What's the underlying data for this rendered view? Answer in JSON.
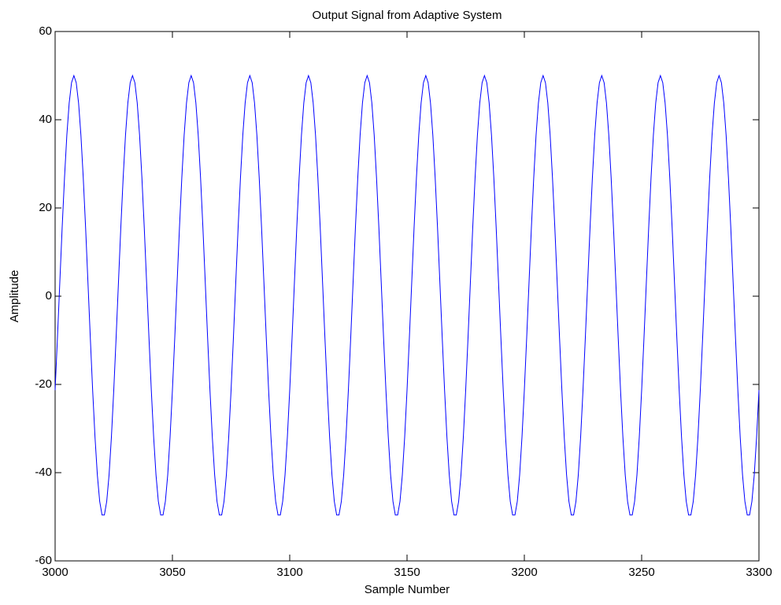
{
  "chart_data": {
    "type": "line",
    "title": "Output Signal from Adaptive System",
    "xlabel": "Sample Number",
    "ylabel": "Amplitude",
    "xlim": [
      3000,
      3300
    ],
    "xticks": [
      3000,
      3050,
      3100,
      3150,
      3200,
      3250,
      3300
    ],
    "ylim": [
      -60,
      60
    ],
    "yticks": [
      -60,
      -40,
      -20,
      0,
      20,
      40,
      60
    ],
    "grid": false,
    "x": [
      3000,
      3001,
      3002,
      3003,
      3004,
      3005,
      3006,
      3007,
      3008,
      3009,
      3010,
      3011,
      3012,
      3013,
      3014,
      3015,
      3016,
      3017,
      3018,
      3019,
      3020,
      3021,
      3022,
      3023,
      3024,
      3025,
      3026,
      3027,
      3028,
      3029,
      3030,
      3031,
      3032,
      3033,
      3034,
      3035,
      3036,
      3037,
      3038,
      3039,
      3040,
      3041,
      3042,
      3043,
      3044,
      3045,
      3046,
      3047,
      3048,
      3049,
      3050,
      3051,
      3052,
      3053,
      3054,
      3055,
      3056,
      3057,
      3058,
      3059,
      3060,
      3061,
      3062,
      3063,
      3064,
      3065,
      3066,
      3067,
      3068,
      3069,
      3070,
      3071,
      3072,
      3073,
      3074,
      3075,
      3076,
      3077,
      3078,
      3079,
      3080,
      3081,
      3082,
      3083,
      3084,
      3085,
      3086,
      3087,
      3088,
      3089,
      3090,
      3091,
      3092,
      3093,
      3094,
      3095,
      3096,
      3097,
      3098,
      3099,
      3100,
      3101,
      3102,
      3103,
      3104,
      3105,
      3106,
      3107,
      3108,
      3109,
      3110,
      3111,
      3112,
      3113,
      3114,
      3115,
      3116,
      3117,
      3118,
      3119,
      3120,
      3121,
      3122,
      3123,
      3124,
      3125,
      3126,
      3127,
      3128,
      3129,
      3130,
      3131,
      3132,
      3133,
      3134,
      3135,
      3136,
      3137,
      3138,
      3139,
      3140,
      3141,
      3142,
      3143,
      3144,
      3145,
      3146,
      3147,
      3148,
      3149,
      3150,
      3151,
      3152,
      3153,
      3154,
      3155,
      3156,
      3157,
      3158,
      3159,
      3160,
      3161,
      3162,
      3163,
      3164,
      3165,
      3166,
      3167,
      3168,
      3169,
      3170,
      3171,
      3172,
      3173,
      3174,
      3175,
      3176,
      3177,
      3178,
      3179,
      3180,
      3181,
      3182,
      3183,
      3184,
      3185,
      3186,
      3187,
      3188,
      3189,
      3190,
      3191,
      3192,
      3193,
      3194,
      3195,
      3196,
      3197,
      3198,
      3199,
      3200,
      3201,
      3202,
      3203,
      3204,
      3205,
      3206,
      3207,
      3208,
      3209,
      3210,
      3211,
      3212,
      3213,
      3214,
      3215,
      3216,
      3217,
      3218,
      3219,
      3220,
      3221,
      3222,
      3223,
      3224,
      3225,
      3226,
      3227,
      3228,
      3229,
      3230,
      3231,
      3232,
      3233,
      3234,
      3235,
      3236,
      3237,
      3238,
      3239,
      3240,
      3241,
      3242,
      3243,
      3244,
      3245,
      3246,
      3247,
      3248,
      3249,
      3250,
      3251,
      3252,
      3253,
      3254,
      3255,
      3256,
      3257,
      3258,
      3259,
      3260,
      3261,
      3262,
      3263,
      3264,
      3265,
      3266,
      3267,
      3268,
      3269,
      3270,
      3271,
      3272,
      3273,
      3274,
      3275,
      3276,
      3277,
      3278,
      3279,
      3280,
      3281,
      3282,
      3283,
      3284,
      3285,
      3286,
      3287,
      3288,
      3289,
      3290,
      3291,
      3292,
      3293,
      3294,
      3295,
      3296,
      3297,
      3298,
      3299,
      3300
    ],
    "series": [
      {
        "color": "#0000ff",
        "values": [
          -21.3,
          -9.4,
          3.1,
          15.5,
          26.8,
          36.5,
          43.8,
          48.4,
          50,
          48.4,
          43.8,
          36.5,
          26.8,
          15.5,
          3.1,
          -9.4,
          -21.3,
          -31.9,
          -40.5,
          -46.5,
          -49.6,
          -49.6,
          -46.5,
          -40.5,
          -31.9,
          -21.3,
          -9.4,
          3.1,
          15.5,
          26.8,
          36.5,
          43.8,
          48.4,
          50,
          48.4,
          43.8,
          36.5,
          26.8,
          15.5,
          3.1,
          -9.4,
          -21.3,
          -31.9,
          -40.5,
          -46.5,
          -49.6,
          -49.6,
          -46.5,
          -40.5,
          -31.9,
          -21.3,
          -9.4,
          3.1,
          15.5,
          26.8,
          36.5,
          43.8,
          48.4,
          50,
          48.4,
          43.8,
          36.5,
          26.8,
          15.5,
          3.1,
          -9.4,
          -21.3,
          -31.9,
          -40.5,
          -46.5,
          -49.6,
          -49.6,
          -46.5,
          -40.5,
          -31.9,
          -21.3,
          -9.4,
          3.1,
          15.5,
          26.8,
          36.5,
          43.8,
          48.4,
          50,
          48.4,
          43.8,
          36.5,
          26.8,
          15.5,
          3.1,
          -9.4,
          -21.3,
          -31.9,
          -40.5,
          -46.5,
          -49.6,
          -49.6,
          -46.5,
          -40.5,
          -31.9,
          -21.3,
          -9.4,
          3.1,
          15.5,
          26.8,
          36.5,
          43.8,
          48.4,
          50,
          48.4,
          43.8,
          36.5,
          26.8,
          15.5,
          3.1,
          -9.4,
          -21.3,
          -31.9,
          -40.5,
          -46.5,
          -49.6,
          -49.6,
          -46.5,
          -40.5,
          -31.9,
          -21.3,
          -9.4,
          3.1,
          15.5,
          26.8,
          36.5,
          43.8,
          48.4,
          50,
          48.4,
          43.8,
          36.5,
          26.8,
          15.5,
          3.1,
          -9.4,
          -21.3,
          -31.9,
          -40.5,
          -46.5,
          -49.6,
          -49.6,
          -46.5,
          -40.5,
          -31.9,
          -21.3,
          -9.4,
          3.1,
          15.5,
          26.8,
          36.5,
          43.8,
          48.4,
          50,
          48.4,
          43.8,
          36.5,
          26.8,
          15.5,
          3.1,
          -9.4,
          -21.3,
          -31.9,
          -40.5,
          -46.5,
          -49.6,
          -49.6,
          -46.5,
          -40.5,
          -31.9,
          -21.3,
          -9.4,
          3.1,
          15.5,
          26.8,
          36.5,
          43.8,
          48.4,
          50,
          48.4,
          43.8,
          36.5,
          26.8,
          15.5,
          3.1,
          -9.4,
          -21.3,
          -31.9,
          -40.5,
          -46.5,
          -49.6,
          -49.6,
          -46.5,
          -40.5,
          -31.9,
          -21.3,
          -9.4,
          3.1,
          15.5,
          26.8,
          36.5,
          43.8,
          48.4,
          50,
          48.4,
          43.8,
          36.5,
          26.8,
          15.5,
          3.1,
          -9.4,
          -21.3,
          -31.9,
          -40.5,
          -46.5,
          -49.6,
          -49.6,
          -46.5,
          -40.5,
          -31.9,
          -21.3,
          -9.4,
          3.1,
          15.5,
          26.8,
          36.5,
          43.8,
          48.4,
          50,
          48.4,
          43.8,
          36.5,
          26.8,
          15.5,
          3.1,
          -9.4,
          -21.3,
          -31.9,
          -40.5,
          -46.5,
          -49.6,
          -49.6,
          -46.5,
          -40.5,
          -31.9,
          -21.3,
          -9.4,
          3.1,
          15.5,
          26.8,
          36.5,
          43.8,
          48.4,
          50,
          48.4,
          43.8,
          36.5,
          26.8,
          15.5,
          3.1,
          -9.4,
          -21.3,
          -31.9,
          -40.5,
          -46.5,
          -49.6,
          -49.6,
          -46.5,
          -40.5,
          -31.9,
          -21.3,
          -9.4,
          3.1,
          15.5,
          26.8,
          36.5,
          43.8,
          48.4,
          50,
          48.4,
          43.8,
          36.5,
          26.8,
          15.5,
          3.1,
          -9.4,
          -21.3,
          -31.9,
          -40.5,
          -46.5,
          -49.6,
          -49.6,
          -46.5,
          -40.5,
          -31.9,
          -21.3
        ]
      }
    ]
  }
}
